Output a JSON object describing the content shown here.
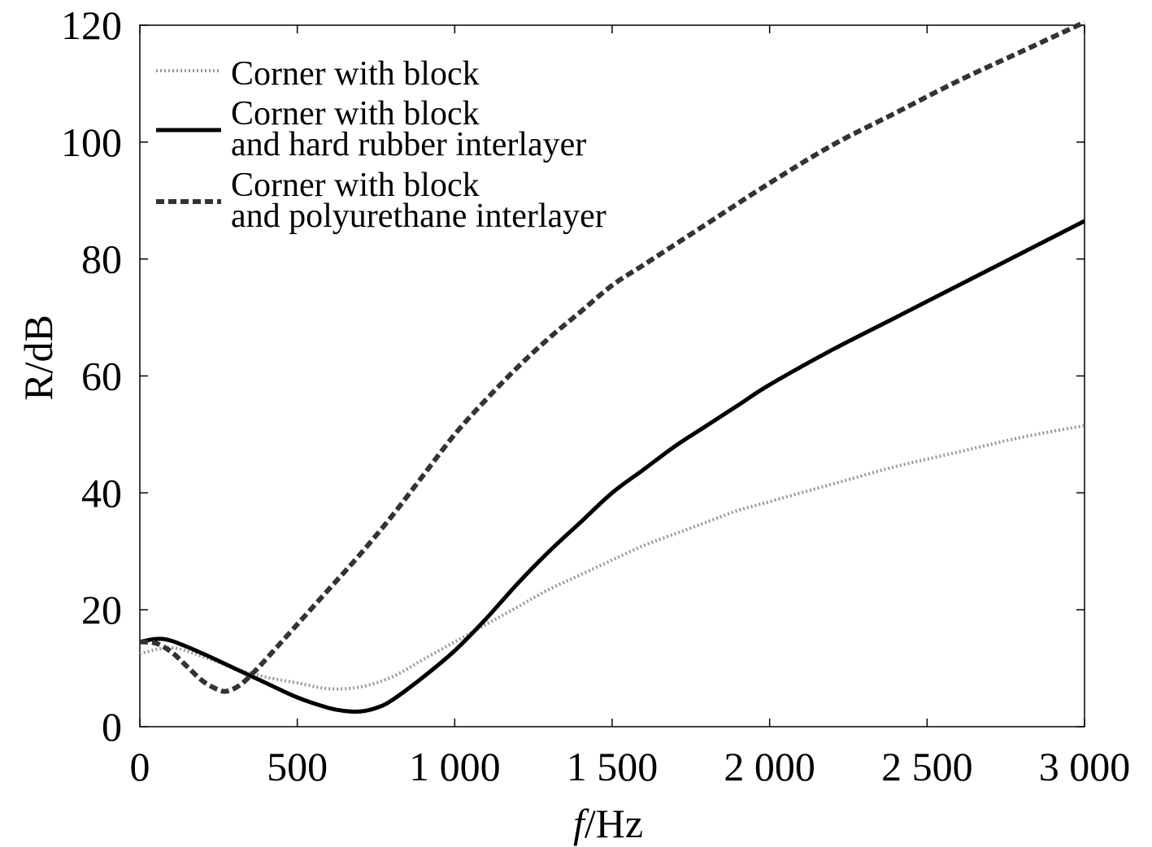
{
  "chart_data": {
    "type": "line",
    "title": "",
    "xlabel_italic": "f",
    "xlabel_rest": "/Hz",
    "ylabel": "R/dB",
    "xlim": [
      0,
      3000
    ],
    "ylim": [
      0,
      120
    ],
    "xticks": [
      0,
      500,
      1000,
      1500,
      2000,
      2500,
      3000
    ],
    "xtick_labels": [
      "0",
      "500",
      "1 000",
      "1 500",
      "2 000",
      "2 500",
      "3 000"
    ],
    "yticks": [
      0,
      20,
      40,
      60,
      80,
      100,
      120
    ],
    "ytick_labels": [
      "0",
      "20",
      "40",
      "60",
      "80",
      "100",
      "120"
    ],
    "grid": false,
    "legend_position": "top-left",
    "series": [
      {
        "name_lines": [
          "Corner with block"
        ],
        "style": "dotted",
        "color": "#999999",
        "x": [
          0,
          100,
          200,
          300,
          400,
          500,
          600,
          700,
          800,
          900,
          1000,
          1100,
          1200,
          1300,
          1400,
          1500,
          1600,
          1700,
          1800,
          1900,
          2000,
          2200,
          2400,
          2600,
          2800,
          3000
        ],
        "y": [
          12.5,
          13.5,
          12,
          10,
          8.5,
          7.5,
          6.5,
          6.8,
          8.5,
          11.5,
          14.5,
          17.5,
          20.5,
          23.5,
          26,
          28.5,
          31,
          33,
          35,
          37,
          38.5,
          41.5,
          44.5,
          47,
          49.5,
          51.5
        ]
      },
      {
        "name_lines": [
          "Corner with block",
          "and hard rubber interlayer"
        ],
        "style": "solid",
        "color": "#000000",
        "x": [
          0,
          50,
          100,
          200,
          300,
          400,
          500,
          600,
          650,
          700,
          750,
          800,
          900,
          1000,
          1100,
          1200,
          1300,
          1400,
          1500,
          1600,
          1700,
          1800,
          1900,
          2000,
          2200,
          2400,
          2600,
          2800,
          3000
        ],
        "y": [
          14.5,
          15,
          14.7,
          12.5,
          10,
          7.5,
          5,
          3.2,
          2.7,
          2.6,
          3.2,
          4.5,
          8.5,
          13,
          18.5,
          24.5,
          30,
          35,
          40,
          44,
          48,
          51.5,
          55,
          58.5,
          64.5,
          70,
          75.5,
          81,
          86.5
        ]
      },
      {
        "name_lines": [
          "Corner with block",
          "and polyurethane interlayer"
        ],
        "style": "dashed",
        "color": "#333333",
        "x": [
          0,
          50,
          100,
          150,
          200,
          250,
          280,
          320,
          360,
          400,
          500,
          600,
          700,
          800,
          900,
          1000,
          1100,
          1200,
          1300,
          1400,
          1500,
          1600,
          1700,
          1800,
          2000,
          2200,
          2400,
          2600,
          2800,
          3000
        ],
        "y": [
          14.5,
          14.3,
          12.8,
          10.3,
          7.8,
          6.3,
          6.1,
          7.2,
          9.2,
          11.5,
          17.5,
          23.5,
          29.5,
          36,
          43,
          50,
          56,
          61.5,
          66.5,
          71,
          75.5,
          79,
          82.5,
          86,
          93,
          99.5,
          105,
          110.5,
          115.5,
          120.5
        ]
      }
    ]
  }
}
